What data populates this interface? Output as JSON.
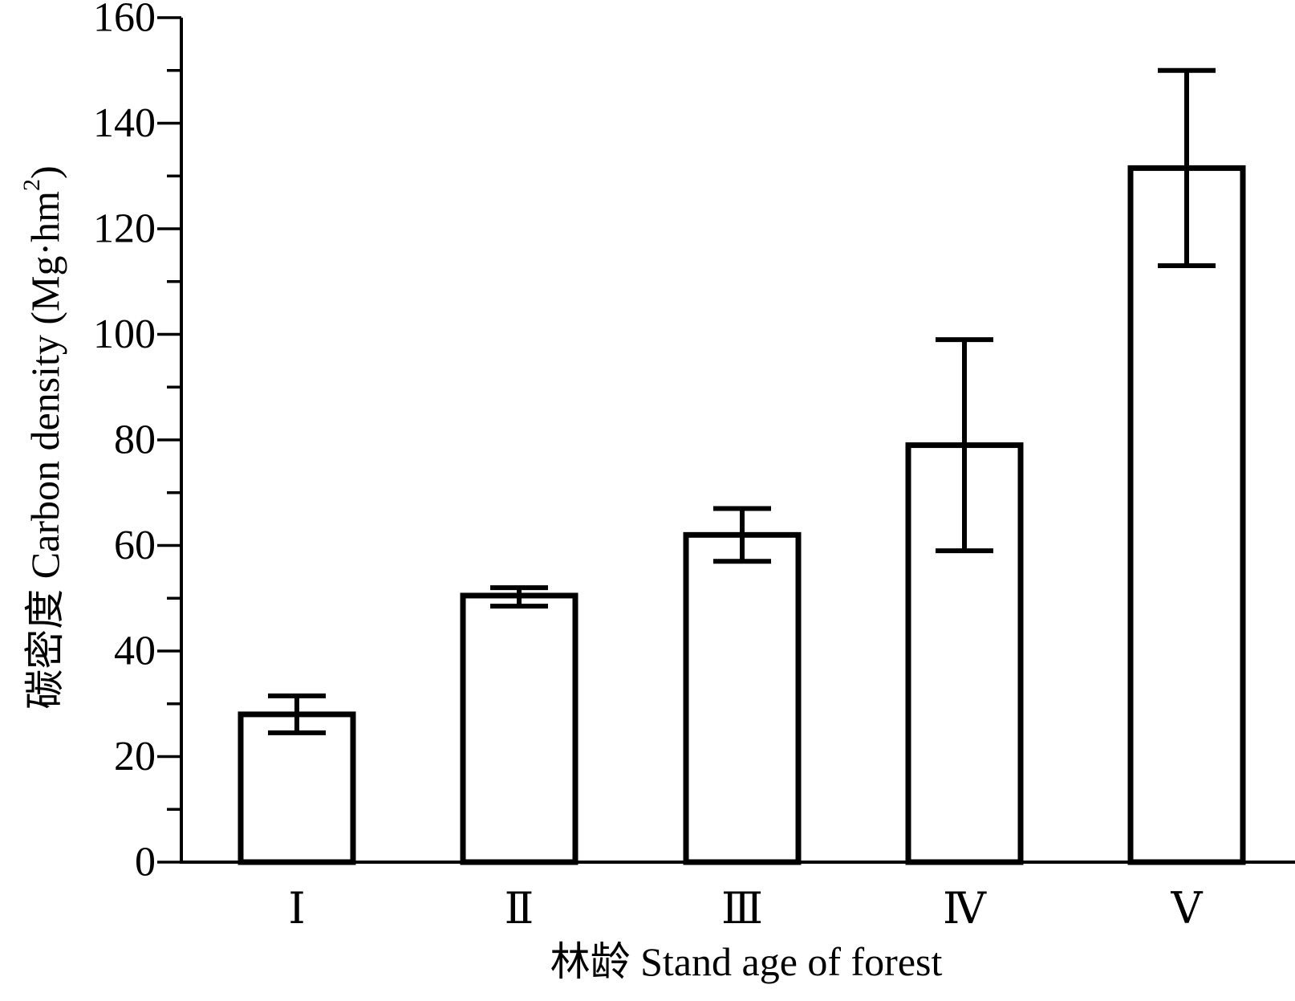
{
  "chart_data": {
    "type": "bar",
    "title": "",
    "xlabel": "林龄 Stand age of forest",
    "ylabel": "碳密度 Carbon density (Mg·hm",
    "ylabel_superscript": "2",
    "ylabel_close": ")",
    "categories": [
      "Ⅰ",
      "Ⅱ",
      "Ⅲ",
      "Ⅳ",
      "Ⅴ"
    ],
    "values": [
      28,
      50.5,
      62,
      79,
      131.5
    ],
    "error_low": [
      24.5,
      48.5,
      57,
      59,
      113
    ],
    "error_high": [
      31.5,
      52,
      67,
      99,
      150
    ],
    "ylim": [
      0,
      160
    ],
    "yticks": [
      0,
      20,
      40,
      60,
      80,
      100,
      120,
      140,
      160
    ],
    "yticks_minor": [
      10,
      30,
      50,
      70,
      90,
      110,
      130,
      150
    ],
    "grid": false,
    "legend": "none",
    "bar_fill": "#ffffff",
    "stroke_color": "#000000"
  }
}
